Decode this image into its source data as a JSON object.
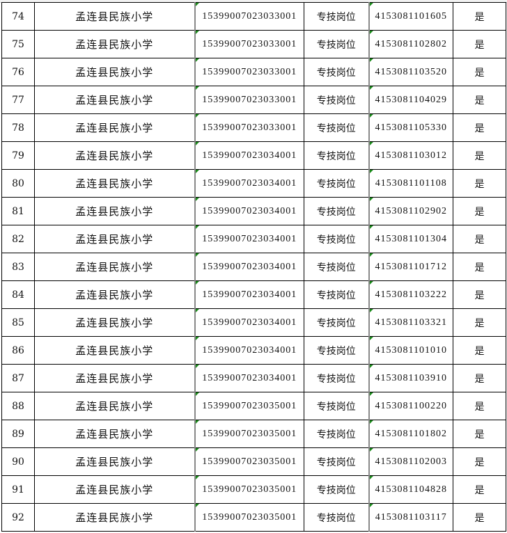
{
  "rows": [
    {
      "no": "74",
      "school": "孟连县民族小学",
      "post_code": "15399007023033001",
      "post_type": "专技岗位",
      "ticket": "4153081101605",
      "flag": "是"
    },
    {
      "no": "75",
      "school": "孟连县民族小学",
      "post_code": "15399007023033001",
      "post_type": "专技岗位",
      "ticket": "4153081102802",
      "flag": "是"
    },
    {
      "no": "76",
      "school": "孟连县民族小学",
      "post_code": "15399007023033001",
      "post_type": "专技岗位",
      "ticket": "4153081103520",
      "flag": "是"
    },
    {
      "no": "77",
      "school": "孟连县民族小学",
      "post_code": "15399007023033001",
      "post_type": "专技岗位",
      "ticket": "4153081104029",
      "flag": "是"
    },
    {
      "no": "78",
      "school": "孟连县民族小学",
      "post_code": "15399007023033001",
      "post_type": "专技岗位",
      "ticket": "4153081105330",
      "flag": "是"
    },
    {
      "no": "79",
      "school": "孟连县民族小学",
      "post_code": "15399007023034001",
      "post_type": "专技岗位",
      "ticket": "4153081103012",
      "flag": "是"
    },
    {
      "no": "80",
      "school": "孟连县民族小学",
      "post_code": "15399007023034001",
      "post_type": "专技岗位",
      "ticket": "4153081101108",
      "flag": "是"
    },
    {
      "no": "81",
      "school": "孟连县民族小学",
      "post_code": "15399007023034001",
      "post_type": "专技岗位",
      "ticket": "4153081102902",
      "flag": "是"
    },
    {
      "no": "82",
      "school": "孟连县民族小学",
      "post_code": "15399007023034001",
      "post_type": "专技岗位",
      "ticket": "4153081101304",
      "flag": "是"
    },
    {
      "no": "83",
      "school": "孟连县民族小学",
      "post_code": "15399007023034001",
      "post_type": "专技岗位",
      "ticket": "4153081101712",
      "flag": "是"
    },
    {
      "no": "84",
      "school": "孟连县民族小学",
      "post_code": "15399007023034001",
      "post_type": "专技岗位",
      "ticket": "4153081103222",
      "flag": "是"
    },
    {
      "no": "85",
      "school": "孟连县民族小学",
      "post_code": "15399007023034001",
      "post_type": "专技岗位",
      "ticket": "4153081103321",
      "flag": "是"
    },
    {
      "no": "86",
      "school": "孟连县民族小学",
      "post_code": "15399007023034001",
      "post_type": "专技岗位",
      "ticket": "4153081101010",
      "flag": "是"
    },
    {
      "no": "87",
      "school": "孟连县民族小学",
      "post_code": "15399007023034001",
      "post_type": "专技岗位",
      "ticket": "4153081103910",
      "flag": "是"
    },
    {
      "no": "88",
      "school": "孟连县民族小学",
      "post_code": "15399007023035001",
      "post_type": "专技岗位",
      "ticket": "4153081100220",
      "flag": "是"
    },
    {
      "no": "89",
      "school": "孟连县民族小学",
      "post_code": "15399007023035001",
      "post_type": "专技岗位",
      "ticket": "4153081101802",
      "flag": "是"
    },
    {
      "no": "90",
      "school": "孟连县民族小学",
      "post_code": "15399007023035001",
      "post_type": "专技岗位",
      "ticket": "4153081102003",
      "flag": "是"
    },
    {
      "no": "91",
      "school": "孟连县民族小学",
      "post_code": "15399007023035001",
      "post_type": "专技岗位",
      "ticket": "4153081104828",
      "flag": "是"
    },
    {
      "no": "92",
      "school": "孟连县民族小学",
      "post_code": "15399007023035001",
      "post_type": "专技岗位",
      "ticket": "4153081103117",
      "flag": "是"
    }
  ],
  "colors": {
    "grid": "#000000",
    "text_cell_marker": "#1a8a1a"
  }
}
